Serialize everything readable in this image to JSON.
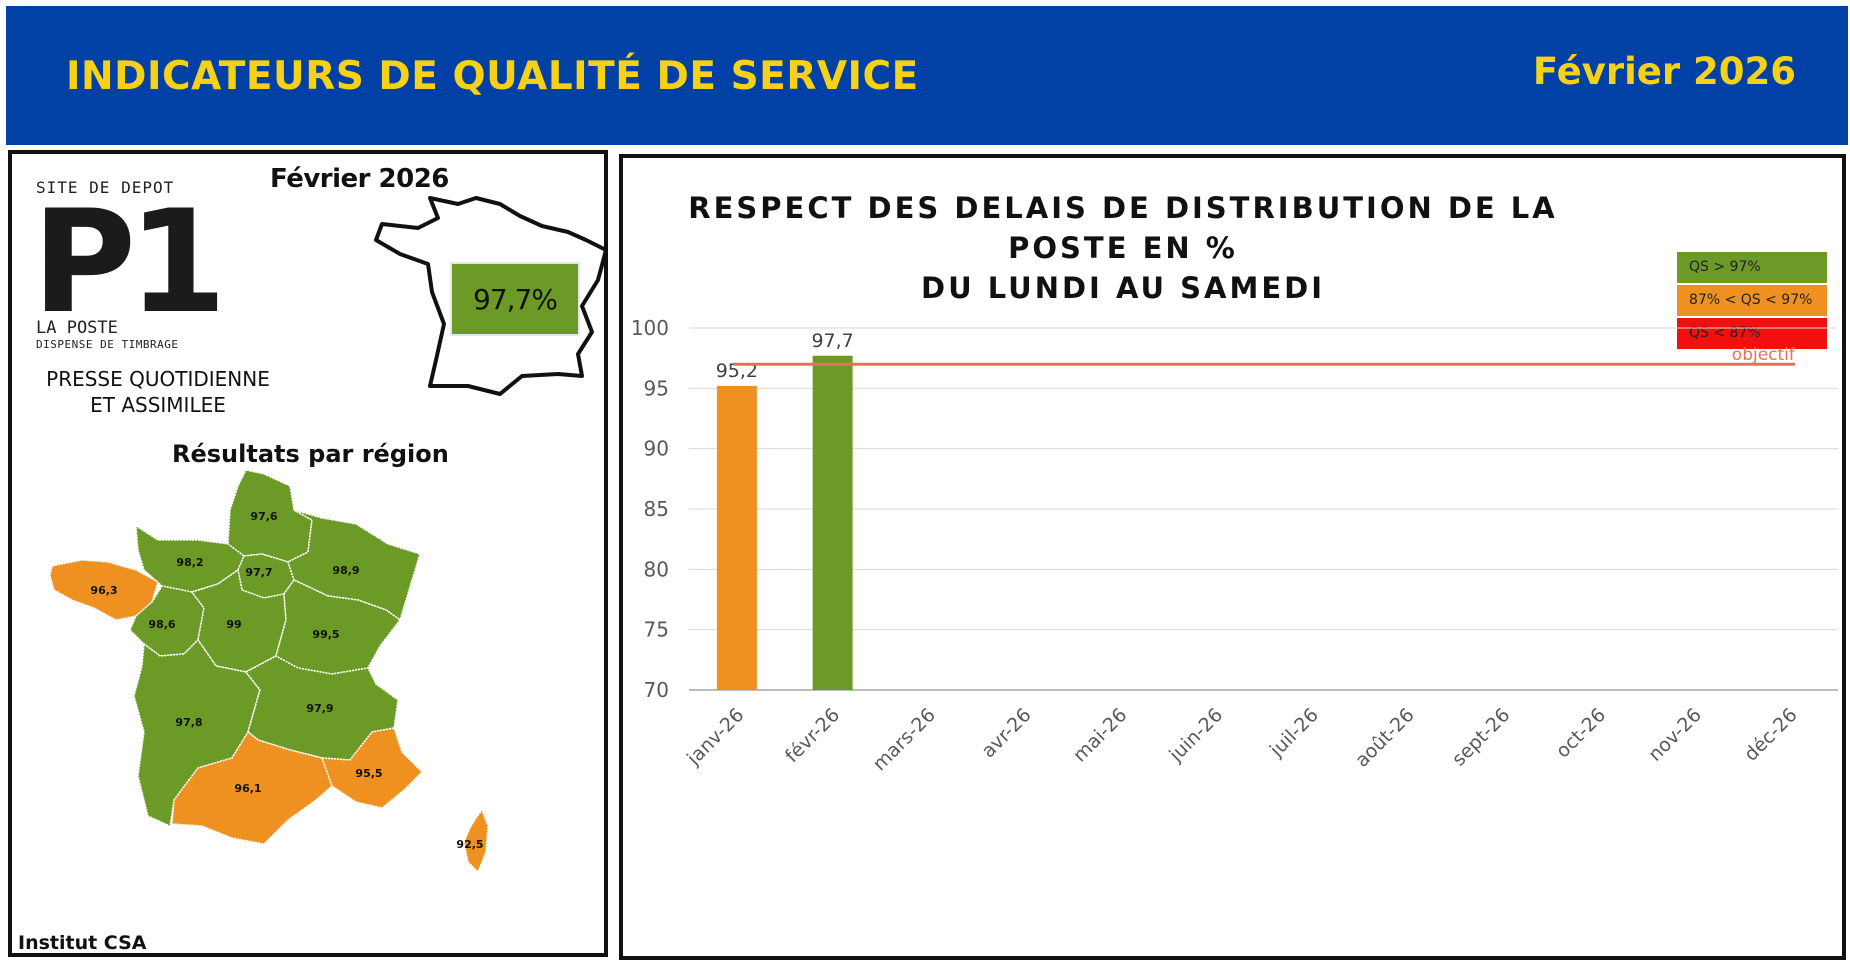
{
  "header": {
    "title": "INDICATEURS DE QUALITÉ DE SERVICE",
    "date": "Février 2026"
  },
  "left_panel": {
    "logo": {
      "top_text": "SITE DE DEPOT",
      "big_text": "P1",
      "line1": "LA POSTE",
      "line2": "DISPENSE DE TIMBRAGE"
    },
    "date": "Février 2026",
    "national_value": "97,7%",
    "national_color": "#6c9a26",
    "category_line1": "PRESSE QUOTIDIENNE",
    "category_line2": "ET ASSIMILEE",
    "map_title": "Résultats par région",
    "source": "Institut CSA",
    "regions": [
      {
        "id": "hauts-de-france",
        "value": "97,6",
        "color": "#6c9a26"
      },
      {
        "id": "normandie",
        "value": "98,2",
        "color": "#6c9a26"
      },
      {
        "id": "ile-de-france",
        "value": "97,7",
        "color": "#6c9a26"
      },
      {
        "id": "grand-est",
        "value": "98,9",
        "color": "#6c9a26"
      },
      {
        "id": "bretagne",
        "value": "96,3",
        "color": "#ef9120"
      },
      {
        "id": "pays-de-la-loire",
        "value": "98,6",
        "color": "#6c9a26"
      },
      {
        "id": "centre-val-de-loire",
        "value": "99",
        "color": "#6c9a26"
      },
      {
        "id": "bourgogne-franche-comte",
        "value": "99,5",
        "color": "#6c9a26"
      },
      {
        "id": "nouvelle-aquitaine",
        "value": "97,8",
        "color": "#6c9a26"
      },
      {
        "id": "auvergne-rhone-alpes",
        "value": "97,9",
        "color": "#6c9a26"
      },
      {
        "id": "occitanie",
        "value": "96,1",
        "color": "#ef9120"
      },
      {
        "id": "provence-alpes-cote-dazur",
        "value": "95,5",
        "color": "#ef9120"
      },
      {
        "id": "corse",
        "value": "92,5",
        "color": "#ef9120"
      }
    ]
  },
  "chart_data": {
    "type": "bar",
    "title_line1": "RESPECT DES DELAIS DE DISTRIBUTION DE LA POSTE EN %",
    "title_line2": "DU LUNDI AU SAMEDI",
    "categories": [
      "janv-26",
      "févr-26",
      "mars-26",
      "avr-26",
      "mai-26",
      "juin-26",
      "juil-26",
      "août-26",
      "sept-26",
      "oct-26",
      "nov-26",
      "déc-26"
    ],
    "values": [
      95.2,
      97.7,
      null,
      null,
      null,
      null,
      null,
      null,
      null,
      null,
      null,
      null
    ],
    "value_labels": [
      "95,2",
      "97,7",
      "",
      "",
      "",
      "",
      "",
      "",
      "",
      "",
      "",
      ""
    ],
    "bar_colors": [
      "#ef9120",
      "#6c9a26",
      "",
      "",
      "",
      "",
      "",
      "",
      "",
      "",
      "",
      ""
    ],
    "ylim": [
      70,
      100
    ],
    "yticks": [
      70,
      75,
      80,
      85,
      90,
      95,
      100
    ],
    "grid": true,
    "objective": {
      "value": 97,
      "label": "objectif",
      "color": "#e8705a"
    },
    "legend_position": "top-right",
    "legend": [
      {
        "label": "QS > 97%",
        "color": "#6c9a26"
      },
      {
        "label": "87% < QS < 97%",
        "color": "#ef9120"
      },
      {
        "label": "QS < 87%",
        "color": "#f20f0f"
      }
    ]
  }
}
